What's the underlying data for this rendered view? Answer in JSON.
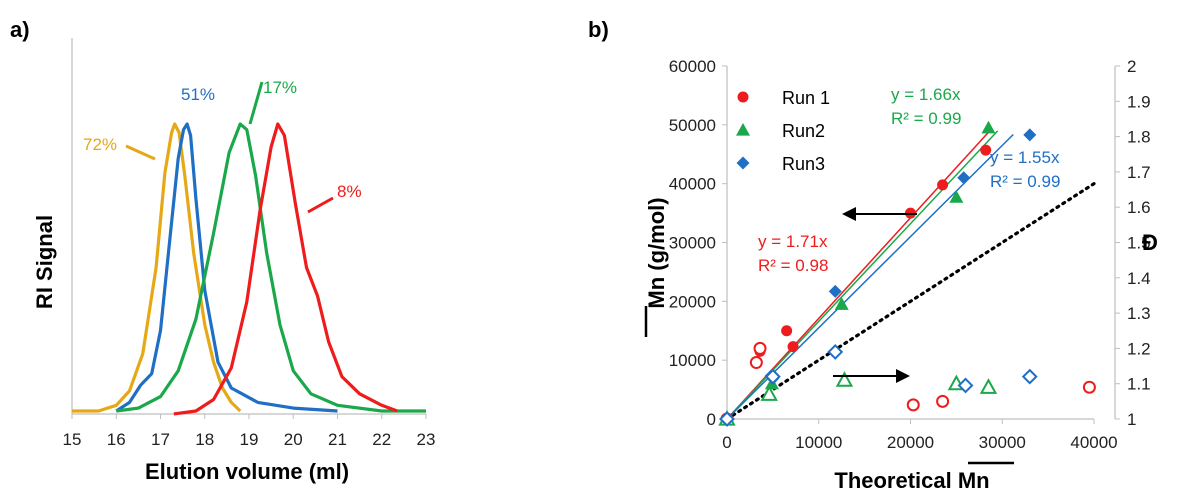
{
  "chart_data": [
    {
      "panel_label": "a)",
      "type": "line",
      "xlabel": "Elution volume (ml)",
      "ylabel": "RI Signal",
      "xlim": [
        15,
        23
      ],
      "x_ticks": [
        "15",
        "16",
        "17",
        "18",
        "19",
        "20",
        "21",
        "22",
        "23"
      ],
      "y_ticks_shown": false,
      "grid": false,
      "colors": {
        "72%": "#e6a817",
        "51%": "#1f6fc5",
        "17%": "#1aa84a",
        "8%": "#ee1c1c"
      },
      "series": [
        {
          "name": "72%",
          "color": "#e6a817",
          "points": [
            [
              15.0,
              0.0
            ],
            [
              15.6,
              0.0
            ],
            [
              16.0,
              0.02
            ],
            [
              16.3,
              0.07
            ],
            [
              16.6,
              0.2
            ],
            [
              16.9,
              0.5
            ],
            [
              17.1,
              0.83
            ],
            [
              17.25,
              0.97
            ],
            [
              17.32,
              1.0
            ],
            [
              17.42,
              0.97
            ],
            [
              17.55,
              0.82
            ],
            [
              17.75,
              0.55
            ],
            [
              18.0,
              0.3
            ],
            [
              18.2,
              0.17
            ],
            [
              18.4,
              0.08
            ],
            [
              18.6,
              0.03
            ],
            [
              18.8,
              0.0
            ]
          ]
        },
        {
          "name": "51%",
          "color": "#1f6fc5",
          "points": [
            [
              16.0,
              0.0
            ],
            [
              16.3,
              0.03
            ],
            [
              16.55,
              0.09
            ],
            [
              16.8,
              0.13
            ],
            [
              17.0,
              0.28
            ],
            [
              17.2,
              0.58
            ],
            [
              17.4,
              0.88
            ],
            [
              17.52,
              0.98
            ],
            [
              17.6,
              1.0
            ],
            [
              17.68,
              0.96
            ],
            [
              17.8,
              0.74
            ],
            [
              18.0,
              0.42
            ],
            [
              18.3,
              0.17
            ],
            [
              18.6,
              0.08
            ],
            [
              19.2,
              0.03
            ],
            [
              20.0,
              0.01
            ],
            [
              21.0,
              0.0
            ]
          ]
        },
        {
          "name": "17%",
          "color": "#1aa84a",
          "points": [
            [
              16.0,
              0.0
            ],
            [
              16.5,
              0.01
            ],
            [
              17.0,
              0.05
            ],
            [
              17.4,
              0.14
            ],
            [
              17.8,
              0.32
            ],
            [
              18.2,
              0.62
            ],
            [
              18.55,
              0.9
            ],
            [
              18.8,
              1.0
            ],
            [
              18.95,
              0.98
            ],
            [
              19.15,
              0.82
            ],
            [
              19.4,
              0.55
            ],
            [
              19.7,
              0.3
            ],
            [
              20.0,
              0.14
            ],
            [
              20.4,
              0.06
            ],
            [
              21.0,
              0.02
            ],
            [
              22.0,
              0.0
            ],
            [
              23.0,
              0.0
            ]
          ]
        },
        {
          "name": "8%",
          "color": "#ee1c1c",
          "points": [
            [
              17.3,
              -0.01
            ],
            [
              17.8,
              0.0
            ],
            [
              18.2,
              0.04
            ],
            [
              18.6,
              0.15
            ],
            [
              18.95,
              0.38
            ],
            [
              19.25,
              0.7
            ],
            [
              19.5,
              0.92
            ],
            [
              19.65,
              1.0
            ],
            [
              19.8,
              0.96
            ],
            [
              20.05,
              0.72
            ],
            [
              20.3,
              0.5
            ],
            [
              20.55,
              0.4
            ],
            [
              20.8,
              0.24
            ],
            [
              21.1,
              0.12
            ],
            [
              21.5,
              0.06
            ],
            [
              22.0,
              0.02
            ],
            [
              22.35,
              0.0
            ]
          ]
        }
      ],
      "annotations": [
        "72%",
        "51%",
        "17%",
        "8%"
      ]
    },
    {
      "panel_label": "b)",
      "type": "scatter",
      "xlabel": "Theoretical Mn",
      "xlabel_overline": "Mn",
      "ylabel": "Mn (g/mol)",
      "y2label": "Đ",
      "xlim": [
        0,
        40000
      ],
      "ylim": [
        0,
        60000
      ],
      "y2lim": [
        1,
        2
      ],
      "x_ticks": [
        "0",
        "10000",
        "20000",
        "30000",
        "40000"
      ],
      "y_ticks": [
        "0",
        "10000",
        "20000",
        "30000",
        "40000",
        "50000",
        "60000"
      ],
      "y2_ticks": [
        "1",
        "1.1",
        "1.2",
        "1.3",
        "1.4",
        "1.5",
        "1.6",
        "1.7",
        "1.8",
        "1.9",
        "2"
      ],
      "grid": false,
      "legend": {
        "position": "top-left",
        "entries": [
          "Run 1",
          "Run2",
          "Run3"
        ]
      },
      "series": [
        {
          "name": "Run 1",
          "color": "#ee1c1c",
          "marker": "circle",
          "axis": "left",
          "points": [
            [
              0,
              0
            ],
            [
              3200,
              9500
            ],
            [
              3600,
              11500
            ],
            [
              6500,
              15000
            ],
            [
              7200,
              12300
            ],
            [
              20000,
              35000
            ],
            [
              23500,
              39800
            ],
            [
              28200,
              45700
            ]
          ]
        },
        {
          "name": "Run2",
          "color": "#1aa84a",
          "marker": "triangle",
          "axis": "left",
          "points": [
            [
              0,
              0
            ],
            [
              4600,
              4400
            ],
            [
              4900,
              6000
            ],
            [
              12500,
              19500
            ],
            [
              25000,
              37700
            ],
            [
              28500,
              49500
            ]
          ]
        },
        {
          "name": "Run3",
          "color": "#1f6fc5",
          "marker": "diamond",
          "axis": "left",
          "points": [
            [
              0,
              0
            ],
            [
              4800,
              7300
            ],
            [
              5000,
              6900
            ],
            [
              11800,
              21700
            ],
            [
              25800,
              41000
            ],
            [
              33000,
              48300
            ]
          ]
        },
        {
          "name": "Run 1",
          "color": "#ee1c1c",
          "marker": "circle-open",
          "axis": "right",
          "points": [
            [
              0,
              1.0
            ],
            [
              3200,
              1.16
            ],
            [
              3600,
              1.2
            ],
            [
              20300,
              1.04
            ],
            [
              23500,
              1.05
            ],
            [
              39500,
              1.09
            ]
          ]
        },
        {
          "name": "Run2",
          "color": "#1aa84a",
          "marker": "triangle-open",
          "axis": "right",
          "points": [
            [
              0,
              1.0
            ],
            [
              4600,
              1.07
            ],
            [
              12800,
              1.11
            ],
            [
              25000,
              1.1
            ],
            [
              28500,
              1.09
            ]
          ]
        },
        {
          "name": "Run3",
          "color": "#1f6fc5",
          "marker": "diamond-open",
          "axis": "right",
          "points": [
            [
              0,
              1.0
            ],
            [
              5000,
              1.12
            ],
            [
              11800,
              1.19
            ],
            [
              26000,
              1.095
            ],
            [
              33000,
              1.12
            ]
          ]
        }
      ],
      "fits": [
        {
          "color": "#ee1c1c",
          "slope": 1.71,
          "equation": "y = 1.71x",
          "r2": "R² = 0.98"
        },
        {
          "color": "#1aa84a",
          "slope": 1.66,
          "equation": "y = 1.66x",
          "r2": "R² = 0.99"
        },
        {
          "color": "#1f6fc5",
          "slope": 1.55,
          "equation": "y = 1.55x",
          "r2": "R² = 0.99"
        }
      ],
      "reference_line": {
        "style": "dotted",
        "color": "#000000",
        "from": [
          0,
          0
        ],
        "to": [
          40000,
          40000
        ]
      }
    }
  ]
}
